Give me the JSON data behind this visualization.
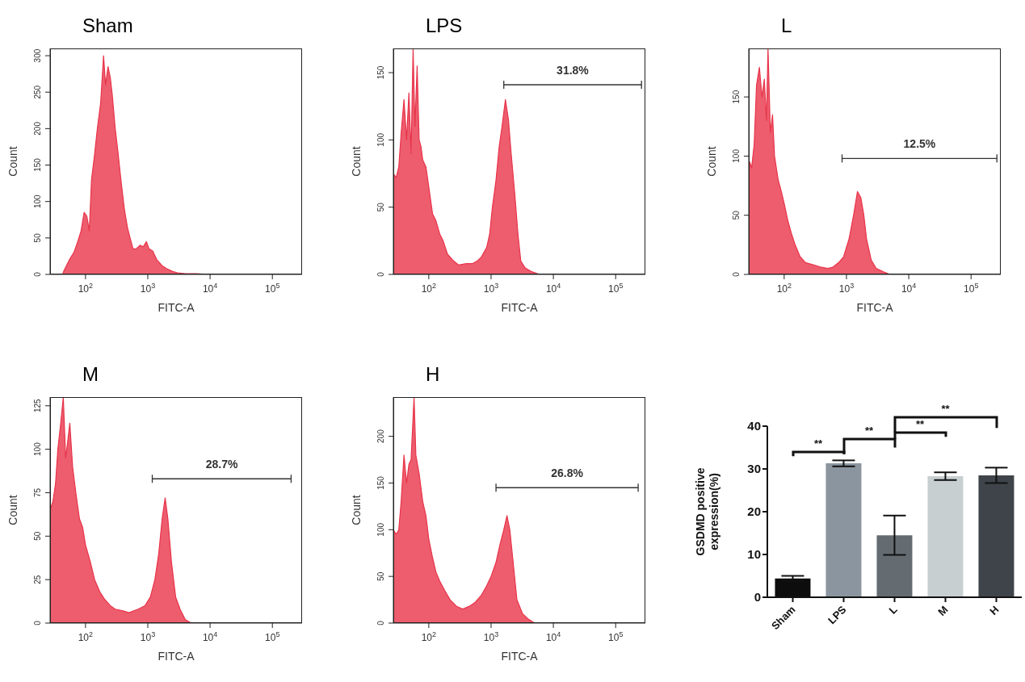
{
  "chart_data": [
    {
      "type": "area",
      "title": "Sham",
      "xlabel": "FITC-A",
      "ylabel": "Count",
      "log": "x",
      "xlim": [
        27,
        300000
      ],
      "xticks": [
        {
          "value": 100,
          "label": "10$^{2}$"
        },
        {
          "value": 1000,
          "label": "10$^{3}$"
        },
        {
          "value": 10000,
          "label": "10$^{4}$"
        },
        {
          "value": 100000,
          "label": "10$^{5}$"
        }
      ],
      "ylim": [
        0,
        310
      ],
      "yticks": [
        0,
        50,
        100,
        150,
        200,
        250,
        300
      ],
      "series": [
        {
          "color": "#e8344a",
          "x": [
            43,
            45,
            55,
            65,
            75,
            85,
            95,
            105,
            115,
            125,
            140,
            155,
            175,
            195,
            210,
            230,
            250,
            270,
            300,
            330,
            370,
            420,
            470,
            520,
            580,
            650,
            750,
            850,
            950,
            1050,
            1200,
            1400,
            1700,
            2000,
            2500,
            3000,
            4000,
            6000,
            10000
          ],
          "values": [
            0,
            5,
            20,
            30,
            45,
            60,
            85,
            80,
            60,
            130,
            165,
            200,
            235,
            300,
            260,
            285,
            270,
            245,
            200,
            170,
            130,
            90,
            65,
            50,
            35,
            35,
            40,
            38,
            45,
            35,
            32,
            20,
            12,
            8,
            4,
            2,
            1,
            1,
            0
          ]
        }
      ]
    },
    {
      "type": "area",
      "title": "LPS",
      "xlabel": "FITC-A",
      "ylabel": "Count",
      "log": "x",
      "xlim": [
        27,
        300000
      ],
      "xticks": [
        {
          "value": 100,
          "label": "10$^{2}$"
        },
        {
          "value": 1000,
          "label": "10$^{3}$"
        },
        {
          "value": 10000,
          "label": "10$^{4}$"
        },
        {
          "value": 100000,
          "label": "10$^{5}$"
        }
      ],
      "ylim": [
        0,
        168
      ],
      "yticks": [
        0,
        50,
        100,
        150
      ],
      "annotations": [
        {
          "text": "31.8%",
          "x": 20400,
          "y": 141
        }
      ],
      "series": [
        {
          "type": "line",
          "color": "#333333",
          "x": [
            1600,
            260000
          ],
          "values": [
            141,
            141
          ]
        },
        {
          "color": "#e8344a",
          "x": [
            27,
            30,
            33,
            36,
            40,
            44,
            48,
            52,
            56,
            60,
            65,
            70,
            75,
            80,
            90,
            100,
            115,
            130,
            150,
            170,
            200,
            250,
            300,
            400,
            500,
            600,
            700,
            850,
            950,
            1050,
            1200,
            1350,
            1500,
            1700,
            1900,
            2100,
            2400,
            2700,
            3000,
            3500,
            4500,
            6000
          ],
          "values": [
            75,
            72,
            80,
            105,
            130,
            100,
            135,
            90,
            168,
            110,
            155,
            100,
            95,
            85,
            80,
            65,
            45,
            40,
            30,
            25,
            15,
            10,
            7,
            8,
            8,
            10,
            13,
            20,
            30,
            50,
            70,
            95,
            110,
            130,
            115,
            90,
            60,
            30,
            10,
            5,
            2,
            0
          ]
        }
      ]
    },
    {
      "type": "area",
      "title": "L",
      "xlabel": "FITC-A",
      "ylabel": "Count",
      "log": "x",
      "xlim": [
        27,
        300000
      ],
      "xticks": [
        {
          "value": 100,
          "label": "10$^{2}$"
        },
        {
          "value": 1000,
          "label": "10$^{3}$"
        },
        {
          "value": 10000,
          "label": "10$^{4}$"
        },
        {
          "value": 100000,
          "label": "10$^{5}$"
        }
      ],
      "ylim": [
        0,
        191
      ],
      "yticks": [
        0,
        50,
        100,
        150
      ],
      "annotations": [
        {
          "text": "12.5%",
          "x": 14900,
          "y": 98
        }
      ],
      "series": [
        {
          "type": "line",
          "color": "#333333",
          "x": [
            850,
            260000
          ],
          "values": [
            98,
            98
          ]
        },
        {
          "color": "#e8344a",
          "x": [
            27,
            28,
            30,
            33,
            36,
            40,
            44,
            48,
            52,
            55,
            60,
            65,
            70,
            80,
            90,
            100,
            115,
            130,
            150,
            180,
            220,
            300,
            400,
            500,
            600,
            750,
            900,
            1100,
            1300,
            1500,
            1700,
            1900,
            2100,
            2500,
            3000,
            4000,
            5000
          ],
          "values": [
            85,
            95,
            90,
            110,
            160,
            175,
            150,
            165,
            130,
            191,
            120,
            135,
            100,
            80,
            70,
            60,
            45,
            35,
            25,
            15,
            10,
            8,
            6,
            5,
            6,
            10,
            15,
            30,
            50,
            70,
            65,
            50,
            30,
            12,
            5,
            2,
            0
          ]
        }
      ]
    },
    {
      "type": "area",
      "title": "M",
      "xlabel": "FITC-A",
      "ylabel": "Count",
      "log": "x",
      "xlim": [
        27,
        300000
      ],
      "xticks": [
        {
          "value": 100,
          "label": "10$^{2}$"
        },
        {
          "value": 1000,
          "label": "10$^{3}$"
        },
        {
          "value": 10000,
          "label": "10$^{4}$"
        },
        {
          "value": 100000,
          "label": "10$^{5}$"
        }
      ],
      "ylim": [
        0,
        130
      ],
      "yticks": [
        0,
        25,
        50,
        75,
        100,
        125
      ],
      "annotations": [
        {
          "text": "28.7%",
          "x": 15400,
          "y": 83
        }
      ],
      "series": [
        {
          "type": "line",
          "color": "#333333",
          "x": [
            1180,
            200000
          ],
          "values": [
            83,
            83
          ]
        },
        {
          "color": "#e8344a",
          "x": [
            27,
            30,
            33,
            36,
            40,
            44,
            48,
            52,
            56,
            62,
            70,
            80,
            90,
            100,
            120,
            140,
            170,
            200,
            250,
            300,
            400,
            500,
            700,
            900,
            1100,
            1300,
            1500,
            1700,
            1900,
            2100,
            2400,
            2800,
            3300,
            4000,
            5000
          ],
          "values": [
            65,
            70,
            80,
            100,
            115,
            130,
            95,
            105,
            115,
            90,
            75,
            60,
            55,
            45,
            35,
            25,
            18,
            14,
            10,
            8,
            7,
            6,
            8,
            10,
            15,
            25,
            40,
            60,
            72,
            60,
            35,
            15,
            8,
            2,
            0
          ]
        }
      ]
    },
    {
      "type": "area",
      "title": "H",
      "xlabel": "FITC-A",
      "ylabel": "Count",
      "log": "x",
      "xlim": [
        27,
        300000
      ],
      "xticks": [
        {
          "value": 100,
          "label": "10$^{2}$"
        },
        {
          "value": 1000,
          "label": "10$^{3}$"
        },
        {
          "value": 10000,
          "label": "10$^{4}$"
        },
        {
          "value": 100000,
          "label": "10$^{5}$"
        }
      ],
      "ylim": [
        0,
        242
      ],
      "yticks": [
        0,
        50,
        100,
        150,
        200
      ],
      "annotations": [
        {
          "text": "26.8%",
          "x": 16600,
          "y": 145
        }
      ],
      "series": [
        {
          "type": "line",
          "color": "#333333",
          "x": [
            1200,
            230000
          ],
          "values": [
            145,
            145
          ]
        },
        {
          "color": "#e8344a",
          "x": [
            27,
            30,
            33,
            36,
            40,
            44,
            48,
            52,
            58,
            62,
            70,
            80,
            90,
            100,
            115,
            130,
            150,
            180,
            220,
            280,
            350,
            450,
            550,
            700,
            850,
            1000,
            1200,
            1400,
            1600,
            1800,
            2000,
            2300,
            2600,
            3200,
            4000,
            5000
          ],
          "values": [
            100,
            95,
            100,
            130,
            180,
            150,
            170,
            175,
            242,
            180,
            160,
            130,
            115,
            90,
            70,
            55,
            45,
            35,
            25,
            18,
            15,
            18,
            22,
            30,
            40,
            50,
            65,
            85,
            100,
            115,
            100,
            60,
            25,
            10,
            4,
            0
          ]
        }
      ]
    },
    {
      "type": "bar",
      "ylabel": "GSDMD positive expression(%)",
      "categories": [
        "Sham",
        "LPS",
        "L",
        "M",
        "H"
      ],
      "values": [
        4.4,
        31.3,
        14.5,
        28.3,
        28.5
      ],
      "errors": [
        0.6,
        0.7,
        4.6,
        0.9,
        1.8
      ],
      "colors": [
        "#0d0d0d",
        "#8a959f",
        "#646c72",
        "#c8cfd0",
        "#3e4449"
      ],
      "ylim": [
        0,
        40
      ],
      "yticks": [
        0,
        10,
        20,
        30,
        40
      ],
      "annotations": [
        "**",
        "**",
        "**",
        "**"
      ]
    }
  ]
}
